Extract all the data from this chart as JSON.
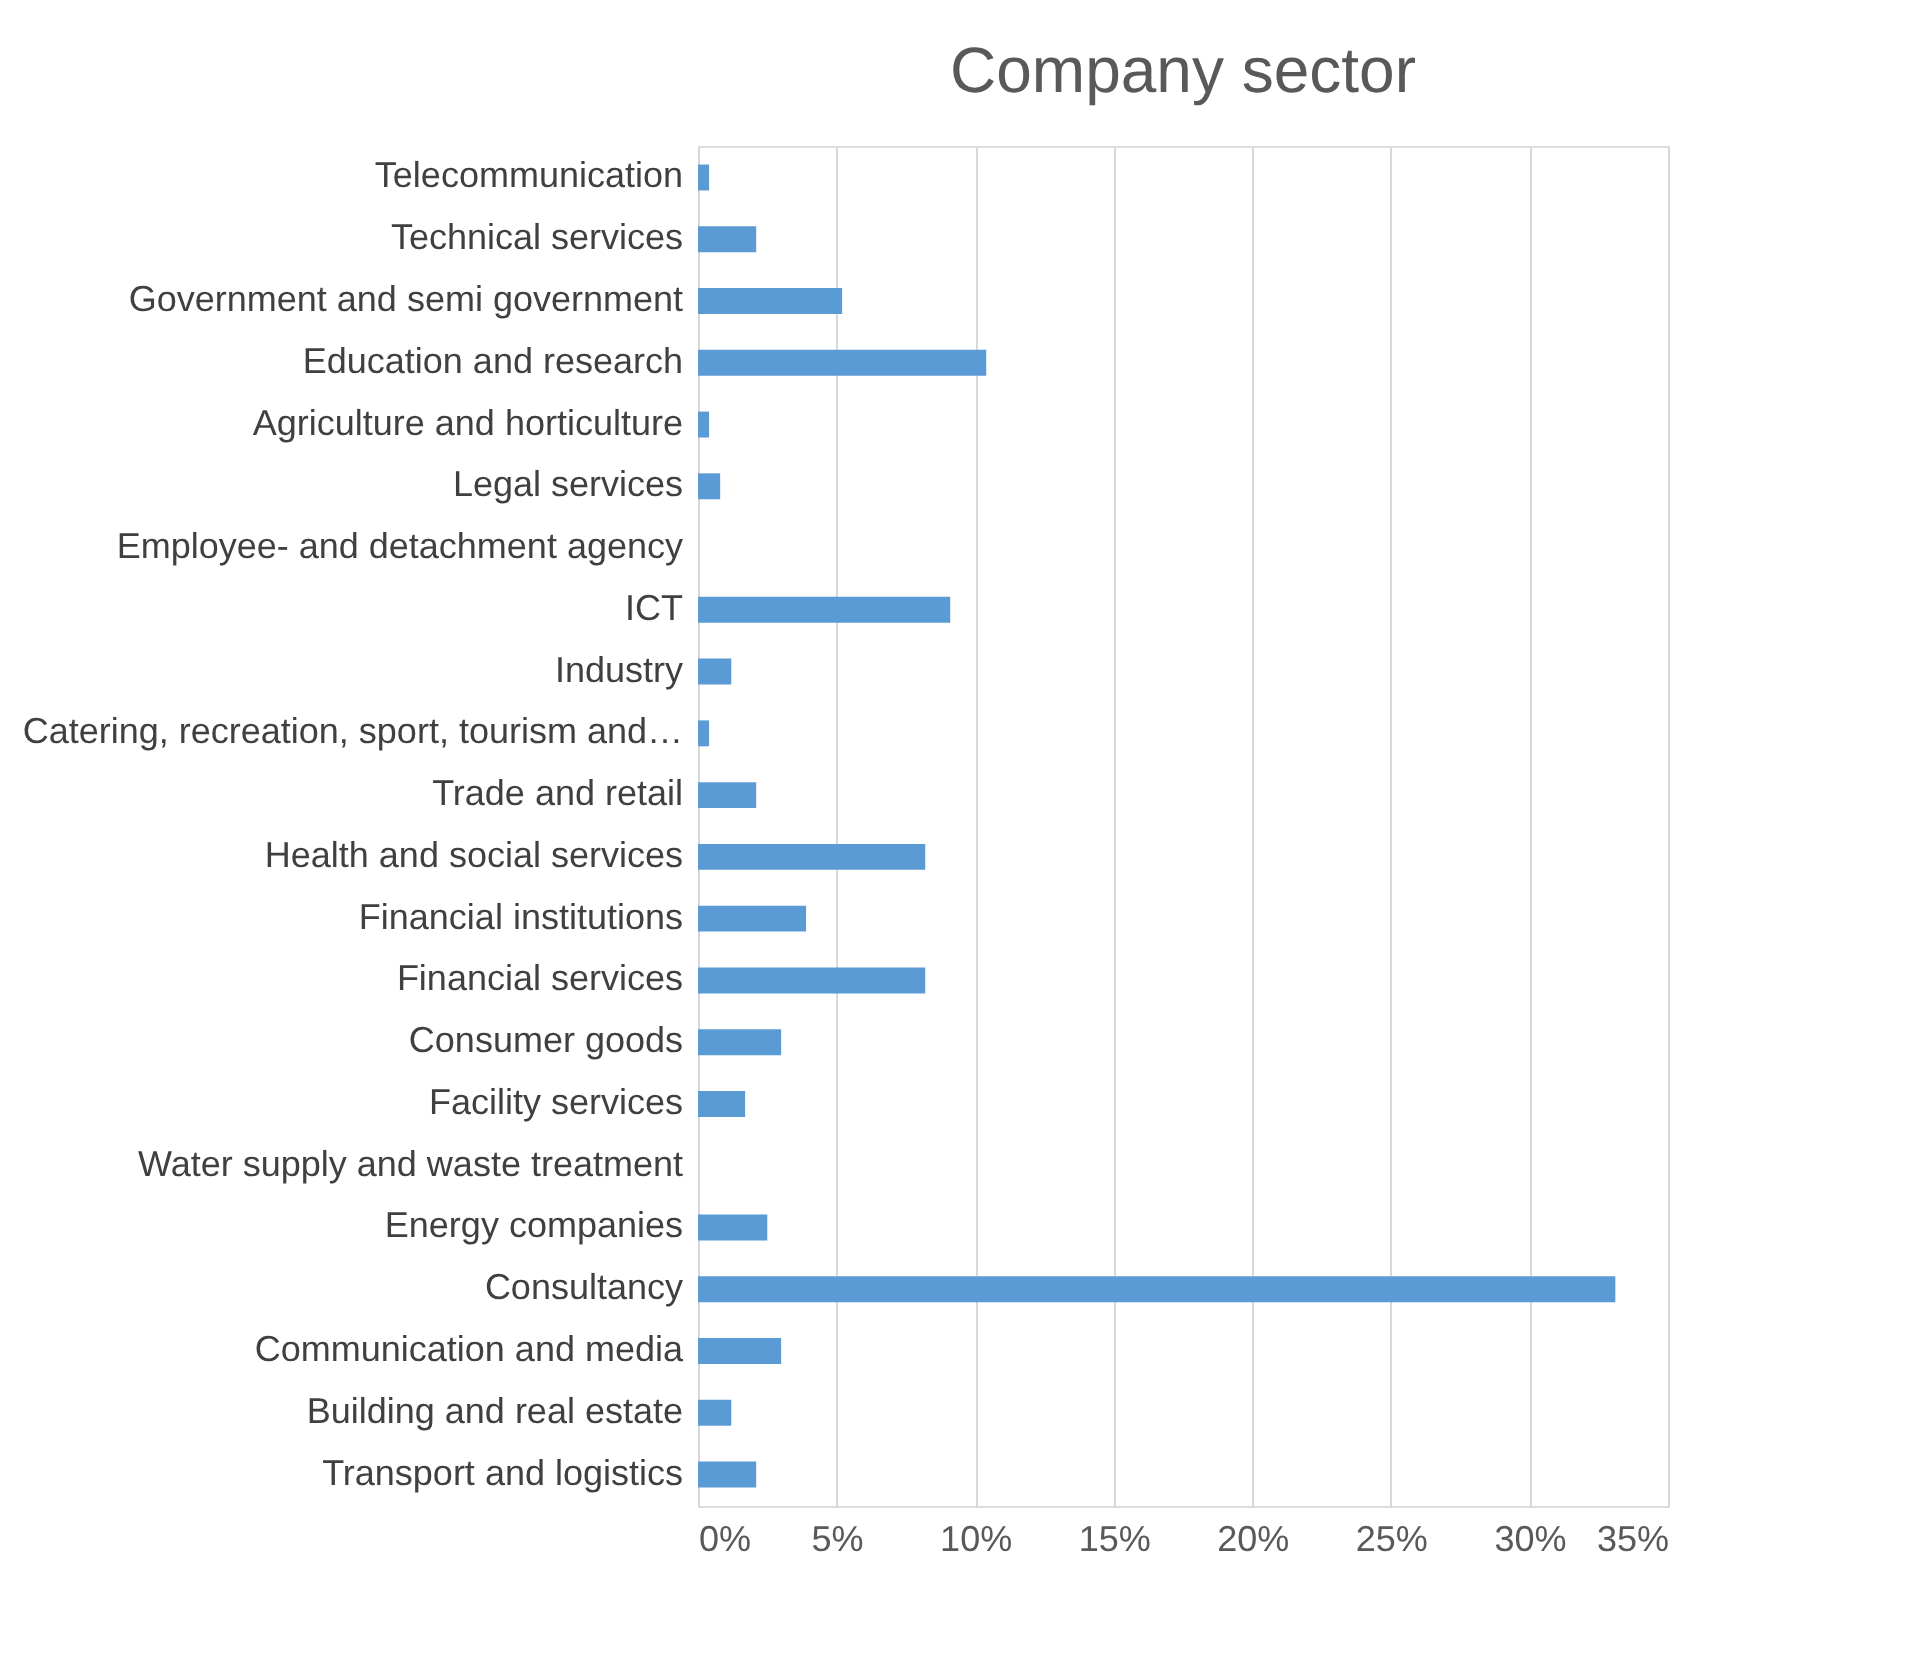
{
  "chart_data": {
    "type": "bar",
    "orientation": "horizontal",
    "title": "Company sector",
    "categories": [
      "Telecommunication",
      "Technical services",
      "Government and semi government",
      "Education and research",
      "Agriculture and horticulture",
      "Legal services",
      "Employee- and detachment agency",
      "ICT",
      "Industry",
      "Catering, recreation, sport, tourism and…",
      "Trade and retail",
      "Health and social services",
      "Financial institutions",
      "Financial services",
      "Consumer goods",
      "Facility services",
      "Water supply and waste treatment",
      "Energy companies",
      "Consultancy",
      "Communication and media",
      "Building and real estate",
      "Transport and logistics"
    ],
    "values": [
      0.4,
      2.1,
      5.2,
      10.4,
      0.4,
      0.8,
      0,
      9.1,
      1.2,
      0.4,
      2.1,
      8.2,
      3.9,
      8.2,
      3.0,
      1.7,
      0,
      2.5,
      33.1,
      3.0,
      1.2,
      2.1
    ],
    "color": "#5b9bd5",
    "xlim": [
      0,
      35
    ],
    "xticks": [
      {
        "value": 0,
        "label": "0%"
      },
      {
        "value": 5,
        "label": "5%"
      },
      {
        "value": 10,
        "label": "10%"
      },
      {
        "value": 15,
        "label": "15%"
      },
      {
        "value": 20,
        "label": "20%"
      },
      {
        "value": 25,
        "label": "25%"
      },
      {
        "value": 30,
        "label": "30%"
      },
      {
        "value": 35,
        "label": "35%"
      }
    ],
    "grid": "x"
  }
}
